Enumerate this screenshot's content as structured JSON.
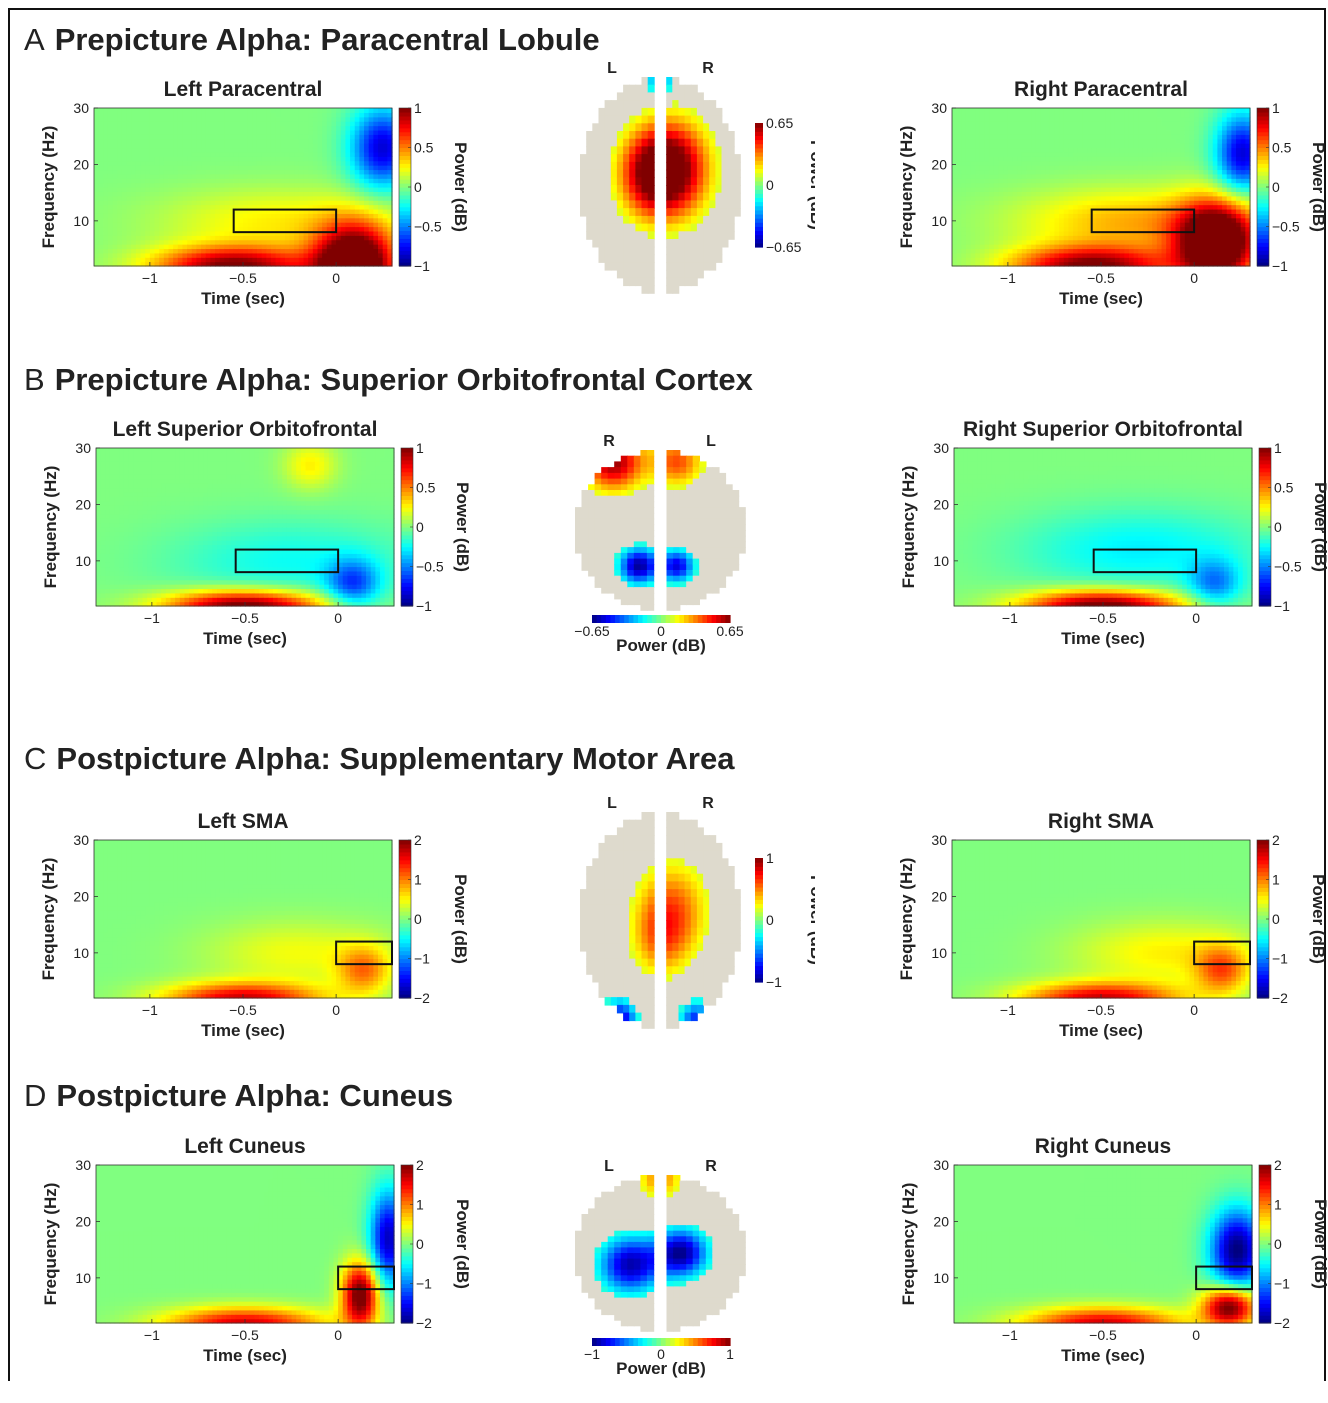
{
  "sections": [
    {
      "letter": "A",
      "title": "Prepicture Alpha: Paracentral Lobule",
      "left": {
        "title": "Left Paracentral",
        "cbar_ticks": [
          "1",
          "0.5",
          "0",
          "−0.5",
          "−1"
        ]
      },
      "right": {
        "title": "Right Paracentral",
        "cbar_ticks": [
          "1",
          "0.5",
          "0",
          "−0.5",
          "−1"
        ]
      },
      "brain": {
        "side_labels": [
          "L",
          "R"
        ],
        "colorbar": {
          "orientation": "vertical",
          "ticks": [
            "0.65",
            "0",
            "−0.65"
          ],
          "label": "Power (dB)"
        }
      }
    },
    {
      "letter": "B",
      "title": "Prepicture Alpha: Superior Orbitofrontal Cortex",
      "left": {
        "title": "Left Superior Orbitofrontal",
        "cbar_ticks": [
          "1",
          "0.5",
          "0",
          "−0.5",
          "−1"
        ]
      },
      "right": {
        "title": "Right Superior Orbitofrontal",
        "cbar_ticks": [
          "1",
          "0.5",
          "0",
          "−0.5",
          "−1"
        ]
      },
      "brain": {
        "side_labels": [
          "R",
          "L"
        ],
        "colorbar": {
          "orientation": "horizontal",
          "ticks": [
            "−0.65",
            "0",
            "0.65"
          ],
          "label": "Power (dB)"
        }
      }
    },
    {
      "letter": "C",
      "title": "Postpicture Alpha: Supplementary Motor Area",
      "left": {
        "title": "Left SMA",
        "cbar_ticks": [
          "2",
          "1",
          "0",
          "−1",
          "−2"
        ]
      },
      "right": {
        "title": "Right SMA",
        "cbar_ticks": [
          "2",
          "1",
          "0",
          "−1",
          "−2"
        ]
      },
      "brain": {
        "side_labels": [
          "L",
          "R"
        ],
        "colorbar": {
          "orientation": "vertical",
          "ticks": [
            "1",
            "0",
            "−1"
          ],
          "label": "Power (dB)"
        }
      }
    },
    {
      "letter": "D",
      "title": "Postpicture Alpha: Cuneus",
      "left": {
        "title": "Left Cuneus",
        "cbar_ticks": [
          "2",
          "1",
          "0",
          "−1",
          "−2"
        ]
      },
      "right": {
        "title": "Right Cuneus",
        "cbar_ticks": [
          "2",
          "1",
          "0",
          "−1",
          "−2"
        ]
      },
      "brain": {
        "side_labels": [
          "L",
          "R"
        ],
        "colorbar": {
          "orientation": "horizontal",
          "ticks": [
            "−1",
            "0",
            "1"
          ],
          "label": "Power (dB)"
        }
      }
    }
  ],
  "chart_data": [
    {
      "type": "heatmap",
      "title": "Left Paracentral",
      "xlabel": "Time (sec)",
      "ylabel": "Frequency (Hz)",
      "colorbar_label": "Power (dB)",
      "xlim": [
        -1.3,
        0.3
      ],
      "ylim": [
        2,
        30
      ],
      "xticks": [
        -1,
        -0.5,
        0
      ],
      "xtick_labels": [
        "−1",
        "−0.5",
        "0"
      ],
      "yticks": [
        10,
        20,
        30
      ],
      "clim": [
        -1,
        1
      ],
      "roi": {
        "t": [
          -0.55,
          0
        ],
        "f": [
          8,
          12
        ]
      },
      "blobs": [
        {
          "t": -0.55,
          "f": 2,
          "st": 0.3,
          "sf": 2.5,
          "v": 1.1
        },
        {
          "t": 0.1,
          "f": 2,
          "st": 0.15,
          "sf": 5,
          "v": 1.6
        },
        {
          "t": 0.25,
          "f": 23,
          "st": 0.12,
          "sf": 5,
          "v": -0.9
        },
        {
          "t": -0.3,
          "f": 10,
          "st": 0.45,
          "sf": 4,
          "v": 0.3
        }
      ]
    },
    {
      "type": "heatmap",
      "title": "Right Paracentral",
      "xlabel": "Time (sec)",
      "ylabel": "Frequency (Hz)",
      "colorbar_label": "Power (dB)",
      "xlim": [
        -1.3,
        0.3
      ],
      "ylim": [
        2,
        30
      ],
      "xticks": [
        -1,
        -0.5,
        0
      ],
      "xtick_labels": [
        "−1",
        "−0.5",
        "0"
      ],
      "yticks": [
        10,
        20,
        30
      ],
      "clim": [
        -1,
        1
      ],
      "roi": {
        "t": [
          -0.55,
          0
        ],
        "f": [
          8,
          12
        ]
      },
      "blobs": [
        {
          "t": -0.55,
          "f": 2,
          "st": 0.3,
          "sf": 2.5,
          "v": 1.1
        },
        {
          "t": 0.12,
          "f": 6,
          "st": 0.15,
          "sf": 5,
          "v": 1.5
        },
        {
          "t": 0.26,
          "f": 22,
          "st": 0.1,
          "sf": 5,
          "v": -0.9
        },
        {
          "t": -0.3,
          "f": 10,
          "st": 0.45,
          "sf": 4,
          "v": 0.45
        }
      ]
    },
    {
      "type": "heatmap",
      "title": "Left Superior Orbitofrontal",
      "xlabel": "Time (sec)",
      "ylabel": "Frequency (Hz)",
      "colorbar_label": "Power (dB)",
      "xlim": [
        -1.3,
        0.3
      ],
      "ylim": [
        2,
        30
      ],
      "xticks": [
        -1,
        -0.5,
        0
      ],
      "xtick_labels": [
        "−1",
        "−0.5",
        "0"
      ],
      "yticks": [
        10,
        20,
        30
      ],
      "clim": [
        -1,
        1
      ],
      "roi": {
        "t": [
          -0.55,
          0
        ],
        "f": [
          8,
          12
        ]
      },
      "blobs": [
        {
          "t": -0.5,
          "f": 2,
          "st": 0.3,
          "sf": 2,
          "v": 1.2
        },
        {
          "t": -0.25,
          "f": 10,
          "st": 0.45,
          "sf": 5,
          "v": -0.25
        },
        {
          "t": 0.08,
          "f": 6,
          "st": 0.1,
          "sf": 3,
          "v": -0.6
        },
        {
          "t": -0.15,
          "f": 27,
          "st": 0.1,
          "sf": 3,
          "v": 0.3
        }
      ]
    },
    {
      "type": "heatmap",
      "title": "Right Superior Orbitofrontal",
      "xlabel": "Time (sec)",
      "ylabel": "Frequency (Hz)",
      "colorbar_label": "Power (dB)",
      "xlim": [
        -1.3,
        0.3
      ],
      "ylim": [
        2,
        30
      ],
      "xticks": [
        -1,
        -0.5,
        0
      ],
      "xtick_labels": [
        "−1",
        "−0.5",
        "0"
      ],
      "yticks": [
        10,
        20,
        30
      ],
      "clim": [
        -1,
        1
      ],
      "roi": {
        "t": [
          -0.55,
          0
        ],
        "f": [
          8,
          12
        ]
      },
      "blobs": [
        {
          "t": -0.5,
          "f": 2,
          "st": 0.3,
          "sf": 2,
          "v": 1.2
        },
        {
          "t": -0.3,
          "f": 12,
          "st": 0.45,
          "sf": 5,
          "v": -0.3
        },
        {
          "t": 0.1,
          "f": 6,
          "st": 0.1,
          "sf": 3,
          "v": -0.5
        }
      ]
    },
    {
      "type": "heatmap",
      "title": "Left SMA",
      "xlabel": "Time (sec)",
      "ylabel": "Frequency (Hz)",
      "colorbar_label": "Power (dB)",
      "xlim": [
        -1.3,
        0.3
      ],
      "ylim": [
        2,
        30
      ],
      "xticks": [
        -1,
        -0.5,
        0
      ],
      "xtick_labels": [
        "−1",
        "−0.5",
        "0"
      ],
      "yticks": [
        10,
        20,
        30
      ],
      "clim": [
        -2,
        2
      ],
      "roi": {
        "t": [
          0,
          0.3
        ],
        "f": [
          8,
          12
        ]
      },
      "blobs": [
        {
          "t": -0.5,
          "f": 2,
          "st": 0.3,
          "sf": 2,
          "v": 1.8
        },
        {
          "t": -0.2,
          "f": 10,
          "st": 0.35,
          "sf": 4,
          "v": 0.5
        },
        {
          "t": 0.15,
          "f": 7,
          "st": 0.1,
          "sf": 3,
          "v": 1.0
        }
      ]
    },
    {
      "type": "heatmap",
      "title": "Right SMA",
      "xlabel": "Time (sec)",
      "ylabel": "Frequency (Hz)",
      "colorbar_label": "Power (dB)",
      "xlim": [
        -1.3,
        0.3
      ],
      "ylim": [
        2,
        30
      ],
      "xticks": [
        -1,
        -0.5,
        0
      ],
      "xtick_labels": [
        "−1",
        "−0.5",
        "0"
      ],
      "yticks": [
        10,
        20,
        30
      ],
      "clim": [
        -2,
        2
      ],
      "roi": {
        "t": [
          0,
          0.3
        ],
        "f": [
          8,
          12
        ]
      },
      "blobs": [
        {
          "t": -0.5,
          "f": 2,
          "st": 0.3,
          "sf": 2,
          "v": 1.8
        },
        {
          "t": -0.15,
          "f": 10,
          "st": 0.35,
          "sf": 4,
          "v": 0.6
        },
        {
          "t": 0.15,
          "f": 7,
          "st": 0.1,
          "sf": 3,
          "v": 1.1
        }
      ]
    },
    {
      "type": "heatmap",
      "title": "Left Cuneus",
      "xlabel": "Time (sec)",
      "ylabel": "Frequency (Hz)",
      "colorbar_label": "Power (dB)",
      "xlim": [
        -1.3,
        0.3
      ],
      "ylim": [
        2,
        30
      ],
      "xticks": [
        -1,
        -0.5,
        0
      ],
      "xtick_labels": [
        "−1",
        "−0.5",
        "0"
      ],
      "yticks": [
        10,
        20,
        30
      ],
      "clim": [
        -2,
        2
      ],
      "roi": {
        "t": [
          0,
          0.3
        ],
        "f": [
          8,
          12
        ]
      },
      "blobs": [
        {
          "t": -0.5,
          "f": 2,
          "st": 0.3,
          "sf": 2,
          "v": 1.8
        },
        {
          "t": 0.12,
          "f": 7,
          "st": 0.07,
          "sf": 4,
          "v": 2.4
        },
        {
          "t": 0.27,
          "f": 17,
          "st": 0.07,
          "sf": 6,
          "v": -1.9
        }
      ]
    },
    {
      "type": "heatmap",
      "title": "Right Cuneus",
      "xlabel": "Time (sec)",
      "ylabel": "Frequency (Hz)",
      "colorbar_label": "Power (dB)",
      "xlim": [
        -1.3,
        0.3
      ],
      "ylim": [
        2,
        30
      ],
      "xticks": [
        -1,
        -0.5,
        0
      ],
      "xtick_labels": [
        "−1",
        "−0.5",
        "0"
      ],
      "yticks": [
        10,
        20,
        30
      ],
      "clim": [
        -2,
        2
      ],
      "roi": {
        "t": [
          0,
          0.3
        ],
        "f": [
          8,
          12
        ]
      },
      "blobs": [
        {
          "t": -0.5,
          "f": 2,
          "st": 0.3,
          "sf": 2,
          "v": 1.8
        },
        {
          "t": 0.18,
          "f": 5,
          "st": 0.1,
          "sf": 2.5,
          "v": 2.4
        },
        {
          "t": 0.22,
          "f": 15,
          "st": 0.1,
          "sf": 5,
          "v": -2.2
        }
      ]
    }
  ]
}
